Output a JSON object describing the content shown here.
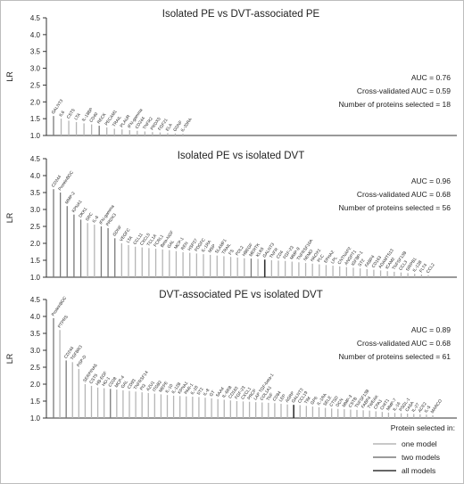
{
  "figure": {
    "y_axis_label": "LR",
    "legend_title": "Protein selected in:",
    "legend_items": [
      {
        "label": "one model",
        "color": "#b5b5b5"
      },
      {
        "label": "two models",
        "color": "#7a7a7a"
      },
      {
        "label": "all models",
        "color": "#333333"
      }
    ]
  },
  "chart_data": [
    {
      "type": "bar",
      "title": "Isolated PE vs DVT-associated PE",
      "ylabel": "LR",
      "ylim": [
        1.0,
        4.5
      ],
      "yticks": [
        "1.0",
        "1.5",
        "2.0",
        "2.5",
        "3.0",
        "3.5",
        "4.0",
        "4.5"
      ],
      "grid": false,
      "annotations": [
        "AUC = 0.76",
        "Cross-validated AUC = 0.59",
        "Number of proteins selected = 18"
      ],
      "categories": [
        "GALNT3",
        "IL6",
        "CST5",
        "LTA",
        "IL-18BP",
        "CD40",
        "RECK",
        "PECAM1",
        "TRAIL",
        "PLAUR",
        "IFN-gamma",
        "CD244",
        "TNFR2",
        "PRDX5",
        "FGF21",
        "ELA",
        "GDNF",
        "IL-20RA"
      ],
      "values": [
        1.58,
        1.5,
        1.44,
        1.4,
        1.36,
        1.33,
        1.29,
        1.24,
        1.2,
        1.18,
        1.16,
        1.14,
        1.12,
        1.1,
        1.09,
        1.07,
        1.06,
        1.05
      ],
      "selection": [
        2,
        1,
        1,
        1,
        1,
        1,
        2,
        1,
        1,
        1,
        1,
        1,
        1,
        1,
        1,
        1,
        1,
        1
      ]
    },
    {
      "type": "bar",
      "title": "Isolated PE vs isolated DVT",
      "ylabel": "LR",
      "ylim": [
        1.0,
        4.5
      ],
      "yticks": [
        "1.0",
        "1.5",
        "2.0",
        "2.5",
        "3.0",
        "3.5",
        "4.0",
        "4.5"
      ],
      "grid": false,
      "annotations": [
        "AUC = 0.96",
        "Cross-validated AUC = 0.68",
        "Number of proteins selected = 56"
      ],
      "categories": [
        "CD244",
        "ProteinBOC",
        "MMP-2",
        "KPNA1",
        "DKK1",
        "SRC",
        "IL-6",
        "IFN-gamma",
        "PRDX3",
        "GDNF",
        "VEGFC",
        "LTA",
        "CCL11",
        "CXCL5",
        "TCL1A",
        "FCRL1",
        "Beta-NGF",
        "GAL",
        "MCP-1",
        "REN",
        "HSP27",
        "PDGFC",
        "IL-1RA",
        "MSP",
        "SLAMF1",
        "TRAIL",
        "FS",
        "PDL2",
        "HBEGF",
        "MERTK",
        "KLK6",
        "GALNT3",
        "TNFR",
        "CD4",
        "FGF-23",
        "MMP-9",
        "TNFRSF10A",
        "NEMO",
        "HAOX1",
        "PLC",
        "EPHA2",
        "LPL",
        "CNTNAP2",
        "ANGPT1",
        "IGFBP-1",
        "ST2",
        "FABP4",
        "CD163",
        "ADAMTS13",
        "ICAM2",
        "TNFSF13B",
        "CCL3",
        "SIRPB1",
        "IL-12B",
        "FLT4",
        "CCL2"
      ],
      "values": [
        3.6,
        3.5,
        3.1,
        2.85,
        2.7,
        2.6,
        2.55,
        2.5,
        2.45,
        2.15,
        2.0,
        1.95,
        1.9,
        1.88,
        1.86,
        1.84,
        1.82,
        1.8,
        1.77,
        1.74,
        1.72,
        1.7,
        1.68,
        1.66,
        1.64,
        1.62,
        1.6,
        1.58,
        1.56,
        1.55,
        1.54,
        1.52,
        1.5,
        1.49,
        1.48,
        1.46,
        1.44,
        1.42,
        1.4,
        1.38,
        1.36,
        1.34,
        1.32,
        1.3,
        1.28,
        1.26,
        1.24,
        1.22,
        1.2,
        1.18,
        1.16,
        1.14,
        1.12,
        1.1,
        1.08,
        1.06
      ],
      "selection": [
        2,
        2,
        2,
        2,
        2,
        1,
        1,
        2,
        2,
        2,
        1,
        1,
        1,
        1,
        1,
        1,
        1,
        1,
        1,
        1,
        1,
        1,
        1,
        1,
        1,
        1,
        1,
        1,
        1,
        2,
        1,
        3,
        1,
        1,
        1,
        1,
        1,
        1,
        1,
        1,
        1,
        1,
        1,
        1,
        1,
        1,
        1,
        1,
        1,
        1,
        1,
        1,
        1,
        1,
        1,
        1
      ]
    },
    {
      "type": "bar",
      "title": "DVT-associated PE vs isolated DVT",
      "ylabel": "LR",
      "ylim": [
        1.0,
        4.5
      ],
      "yticks": [
        "1.0",
        "1.5",
        "2.0",
        "2.5",
        "3.0",
        "3.5",
        "4.0",
        "4.5"
      ],
      "grid": false,
      "annotations": [
        "AUC = 0.89",
        "Cross-validated AUC = 0.68",
        "Number of proteins selected = 61"
      ],
      "categories": [
        "ProteinBOC",
        "PTPRS",
        "CD244",
        "TGFBR3",
        "PSP-D",
        "SERPINA5",
        "CST5",
        "HB-EGF",
        "HO-1",
        "CD28",
        "MCP-4",
        "GAL",
        "CD93",
        "TNFRSF14",
        "PI3",
        "AZU1",
        "ITGB2",
        "MEPE",
        "IL-10",
        "IL-12B",
        "KPNA1",
        "PAR-1",
        "IL-18",
        "ST2",
        "IL-8",
        "GT",
        "SAA4",
        "IL-6RB",
        "CD163",
        "FGF-23",
        "CXCL1",
        "PRCP",
        "LAP TGF-beta-1",
        "COL1A1",
        "TNF",
        "CD84",
        "LEP",
        "AGRP",
        "GALNT3",
        "CCL19",
        "TIM",
        "GP6",
        "IL-1RA",
        "SELE",
        "CTSD",
        "DCN",
        "MMP-3",
        "CSTB",
        "TNFSF13B",
        "FABP4",
        "TWEAK",
        "CPA1",
        "CHIT1",
        "MMP-7",
        "IL-16",
        "PSGL-1",
        "CA5A",
        "IL-27",
        "ACE2",
        "IL-5",
        "MARCO"
      ],
      "values": [
        3.95,
        3.6,
        2.7,
        2.65,
        2.45,
        2.0,
        1.95,
        1.9,
        1.88,
        1.86,
        1.84,
        1.82,
        1.8,
        1.78,
        1.76,
        1.74,
        1.72,
        1.7,
        1.68,
        1.66,
        1.65,
        1.64,
        1.63,
        1.62,
        1.6,
        1.58,
        1.56,
        1.54,
        1.52,
        1.5,
        1.49,
        1.48,
        1.47,
        1.46,
        1.45,
        1.44,
        1.42,
        1.4,
        1.39,
        1.38,
        1.36,
        1.34,
        1.32,
        1.3,
        1.28,
        1.27,
        1.26,
        1.25,
        1.24,
        1.23,
        1.22,
        1.2,
        1.18,
        1.16,
        1.15,
        1.14,
        1.13,
        1.12,
        1.11,
        1.1,
        1.08
      ],
      "selection": [
        2,
        1,
        2,
        1,
        1,
        1,
        1,
        1,
        1,
        2,
        1,
        1,
        1,
        1,
        1,
        1,
        1,
        1,
        1,
        1,
        1,
        1,
        1,
        1,
        1,
        1,
        1,
        1,
        1,
        1,
        1,
        1,
        1,
        1,
        1,
        1,
        1,
        1,
        3,
        1,
        1,
        1,
        1,
        1,
        1,
        1,
        1,
        1,
        1,
        1,
        1,
        1,
        1,
        1,
        1,
        1,
        1,
        1,
        1,
        1,
        1
      ]
    }
  ]
}
